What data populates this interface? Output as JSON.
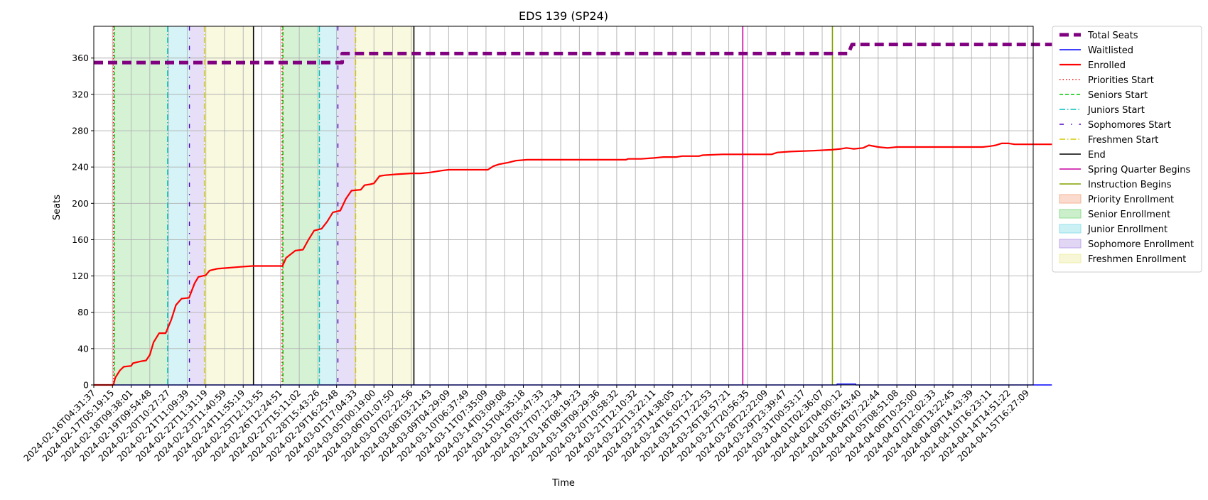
{
  "chart_data": {
    "type": "line",
    "title": "EDS 139 (SP24)",
    "xlabel": "Time",
    "ylabel": "Seats",
    "ylim": [
      0,
      395
    ],
    "yticks": [
      0,
      40,
      80,
      120,
      160,
      200,
      240,
      280,
      320,
      360
    ],
    "grid": true,
    "legend_position": "outside-right",
    "x_tick_labels": [
      "2024-02-16T04:31:37",
      "2024-02-17T05:19:15",
      "2024-02-18T09:38:01",
      "2024-02-19T09:54:48",
      "2024-02-20T10:27:27",
      "2024-02-21T11:09:39",
      "2024-02-22T11:31:19",
      "2024-02-23T11:40:59",
      "2024-02-24T11:55:19",
      "2024-02-25T12:13:55",
      "2024-02-26T12:24:51",
      "2024-02-27T15:11:02",
      "2024-02-28T15:43:26",
      "2024-02-29T16:25:48",
      "2024-03-01T17:04:33",
      "2024-03-05T00:19:00",
      "2024-03-06T01:07:50",
      "2024-03-07T02:22:56",
      "2024-03-08T03:21:43",
      "2024-03-09T04:29:09",
      "2024-03-10T06:37:49",
      "2024-03-11T07:35:09",
      "2024-03-14T03:09:08",
      "2024-03-15T04:35:18",
      "2024-03-16T05:47:33",
      "2024-03-17T07:12:34",
      "2024-03-18T08:19:23",
      "2024-03-19T09:29:36",
      "2024-03-20T10:58:32",
      "2024-03-21T12:10:32",
      "2024-03-22T13:22:11",
      "2024-03-23T14:38:05",
      "2024-03-24T16:02:21",
      "2024-03-25T17:22:53",
      "2024-03-26T18:57:21",
      "2024-03-27T20:56:35",
      "2024-03-28T22:22:09",
      "2024-03-29T23:39:47",
      "2024-03-31T00:53:17",
      "2024-04-01T02:36:07",
      "2024-04-02T04:00:12",
      "2024-04-03T05:43:40",
      "2024-04-04T07:22:44",
      "2024-04-05T08:51:08",
      "2024-04-06T10:25:00",
      "2024-04-07T12:02:33",
      "2024-04-08T13:22:45",
      "2024-04-09T14:43:39",
      "2024-04-10T16:23:11",
      "2024-04-14T14:51:22",
      "2024-04-15T16:27:09"
    ],
    "series": [
      {
        "name": "Total Seats",
        "color": "#800080",
        "style": "dashed-thick",
        "points": [
          [
            0,
            355
          ],
          [
            13.3,
            355
          ],
          [
            13.3,
            365
          ],
          [
            40.4,
            365
          ],
          [
            40.6,
            375
          ],
          [
            51.3,
            375
          ]
        ]
      },
      {
        "name": "Waitlisted",
        "color": "#0000ff",
        "style": "solid",
        "points": [
          [
            0,
            0
          ],
          [
            39.8,
            0
          ],
          [
            39.8,
            1
          ],
          [
            40.8,
            1
          ],
          [
            40.8,
            0
          ],
          [
            51.3,
            0
          ]
        ]
      },
      {
        "name": "Enrolled",
        "color": "#ff0000",
        "style": "solid-thick",
        "points": [
          [
            0,
            0
          ],
          [
            1.05,
            0
          ],
          [
            1.15,
            8
          ],
          [
            1.4,
            16
          ],
          [
            1.6,
            20
          ],
          [
            2.0,
            21
          ],
          [
            2.1,
            24
          ],
          [
            2.5,
            26
          ],
          [
            2.8,
            27
          ],
          [
            3.0,
            33
          ],
          [
            3.2,
            47
          ],
          [
            3.5,
            57
          ],
          [
            3.85,
            57
          ],
          [
            4.15,
            72
          ],
          [
            4.4,
            88
          ],
          [
            4.7,
            95
          ],
          [
            5.1,
            96
          ],
          [
            5.4,
            112
          ],
          [
            5.6,
            119
          ],
          [
            6.0,
            121
          ],
          [
            6.2,
            126
          ],
          [
            6.6,
            128
          ],
          [
            7.2,
            129
          ],
          [
            7.8,
            130
          ],
          [
            8.5,
            131
          ],
          [
            10.1,
            131
          ],
          [
            10.3,
            140
          ],
          [
            10.8,
            148
          ],
          [
            11.2,
            149
          ],
          [
            11.5,
            160
          ],
          [
            11.8,
            170
          ],
          [
            12.2,
            172
          ],
          [
            12.5,
            180
          ],
          [
            12.8,
            190
          ],
          [
            13.2,
            192
          ],
          [
            13.5,
            205
          ],
          [
            13.8,
            214
          ],
          [
            14.3,
            215
          ],
          [
            14.5,
            220
          ],
          [
            14.8,
            221
          ],
          [
            15.0,
            222
          ],
          [
            15.3,
            230
          ],
          [
            15.6,
            231
          ],
          [
            16.2,
            232
          ],
          [
            17.0,
            233
          ],
          [
            17.5,
            233
          ],
          [
            18.0,
            234
          ],
          [
            18.6,
            236
          ],
          [
            19.0,
            237
          ],
          [
            20.0,
            237
          ],
          [
            21.1,
            237
          ],
          [
            21.4,
            241
          ],
          [
            21.7,
            243
          ],
          [
            22.2,
            245
          ],
          [
            22.6,
            247
          ],
          [
            23.2,
            248
          ],
          [
            24.0,
            248
          ],
          [
            25.0,
            248
          ],
          [
            26.0,
            248
          ],
          [
            28.5,
            248
          ],
          [
            28.6,
            249
          ],
          [
            29.3,
            249
          ],
          [
            30.0,
            250
          ],
          [
            30.5,
            251
          ],
          [
            31.2,
            251
          ],
          [
            31.5,
            252
          ],
          [
            32.4,
            252
          ],
          [
            32.6,
            253
          ],
          [
            33.7,
            254
          ],
          [
            35.7,
            254
          ],
          [
            36.3,
            254
          ],
          [
            36.6,
            256
          ],
          [
            37.3,
            257
          ],
          [
            38.5,
            258
          ],
          [
            39.5,
            259
          ],
          [
            40.0,
            260
          ],
          [
            40.3,
            261
          ],
          [
            40.7,
            260
          ],
          [
            41.2,
            261
          ],
          [
            41.5,
            264
          ],
          [
            42.0,
            262
          ],
          [
            42.5,
            261
          ],
          [
            43.0,
            262
          ],
          [
            43.4,
            262
          ],
          [
            44.0,
            262
          ],
          [
            46.0,
            262
          ],
          [
            47.6,
            262
          ],
          [
            48.0,
            263
          ],
          [
            48.3,
            264
          ],
          [
            48.6,
            266
          ],
          [
            49.0,
            266
          ],
          [
            49.3,
            265
          ],
          [
            51.3,
            265
          ]
        ]
      }
    ],
    "vertical_markers": [
      {
        "name": "Priorities Start",
        "color": "#ff0000",
        "style": "dotted",
        "x": [
          1.05,
          10.08
        ]
      },
      {
        "name": "Seniors Start",
        "color": "#00c800",
        "style": "dashed",
        "x": [
          1.1,
          10.13
        ]
      },
      {
        "name": "Juniors Start",
        "color": "#00bfbf",
        "style": "dashdot",
        "x": [
          3.95,
          12.08
        ]
      },
      {
        "name": "Sophomores Start",
        "color": "#4b00c8",
        "style": "dashdot-sparse",
        "x": [
          5.12,
          13.07
        ]
      },
      {
        "name": "Freshmen Start",
        "color": "#d4c800",
        "style": "dashdot",
        "x": [
          5.92,
          14.02
        ]
      },
      {
        "name": "End",
        "color": "#000000",
        "style": "solid",
        "x": [
          8.55,
          17.14
        ]
      },
      {
        "name": "Spring Quarter Begins",
        "color": "#c800a0",
        "style": "solid",
        "x": [
          34.75
        ]
      },
      {
        "name": "Instruction Begins",
        "color": "#80a000",
        "style": "solid",
        "x": [
          39.55
        ]
      }
    ],
    "shaded_regions": [
      {
        "name": "Priority Enrollment",
        "color": "#f4a582",
        "spans": [
          [
            1.05,
            1.1
          ],
          [
            10.08,
            10.13
          ]
        ]
      },
      {
        "name": "Senior Enrollment",
        "color": "#7cd67c",
        "spans": [
          [
            1.1,
            3.95
          ],
          [
            10.13,
            12.08
          ]
        ]
      },
      {
        "name": "Junior Enrollment",
        "color": "#80dce6",
        "spans": [
          [
            3.95,
            5.12
          ],
          [
            12.08,
            13.07
          ]
        ]
      },
      {
        "name": "Sophomore Enrollment",
        "color": "#b49ae6",
        "spans": [
          [
            5.12,
            5.92
          ],
          [
            13.07,
            14.02
          ]
        ]
      },
      {
        "name": "Freshmen Enrollment",
        "color": "#ecec9c",
        "spans": [
          [
            5.92,
            8.55
          ],
          [
            14.02,
            17.14
          ]
        ]
      }
    ],
    "legend": [
      {
        "label": "Total Seats",
        "kind": "line",
        "color": "#800080",
        "style": "dashed-thick"
      },
      {
        "label": "Waitlisted",
        "kind": "line",
        "color": "#0000ff",
        "style": "solid"
      },
      {
        "label": "Enrolled",
        "kind": "line",
        "color": "#ff0000",
        "style": "solid-thick"
      },
      {
        "label": "Priorities Start",
        "kind": "line",
        "color": "#ff0000",
        "style": "dotted"
      },
      {
        "label": "Seniors Start",
        "kind": "line",
        "color": "#00c800",
        "style": "dashed"
      },
      {
        "label": "Juniors Start",
        "kind": "line",
        "color": "#00bfbf",
        "style": "dashdot"
      },
      {
        "label": "Sophomores Start",
        "kind": "line",
        "color": "#4b00c8",
        "style": "dashdot-sparse"
      },
      {
        "label": "Freshmen Start",
        "kind": "line",
        "color": "#d4c800",
        "style": "dashdot"
      },
      {
        "label": "End",
        "kind": "line",
        "color": "#000000",
        "style": "solid"
      },
      {
        "label": "Spring Quarter Begins",
        "kind": "line",
        "color": "#c800a0",
        "style": "solid"
      },
      {
        "label": "Instruction Begins",
        "kind": "line",
        "color": "#80a000",
        "style": "solid"
      },
      {
        "label": "Priority Enrollment",
        "kind": "patch",
        "color": "#f4a582"
      },
      {
        "label": "Senior Enrollment",
        "kind": "patch",
        "color": "#7cd67c"
      },
      {
        "label": "Junior Enrollment",
        "kind": "patch",
        "color": "#80dce6"
      },
      {
        "label": "Sophomore Enrollment",
        "kind": "patch",
        "color": "#b49ae6"
      },
      {
        "label": "Freshmen Enrollment",
        "kind": "patch",
        "color": "#ecec9c"
      }
    ]
  }
}
